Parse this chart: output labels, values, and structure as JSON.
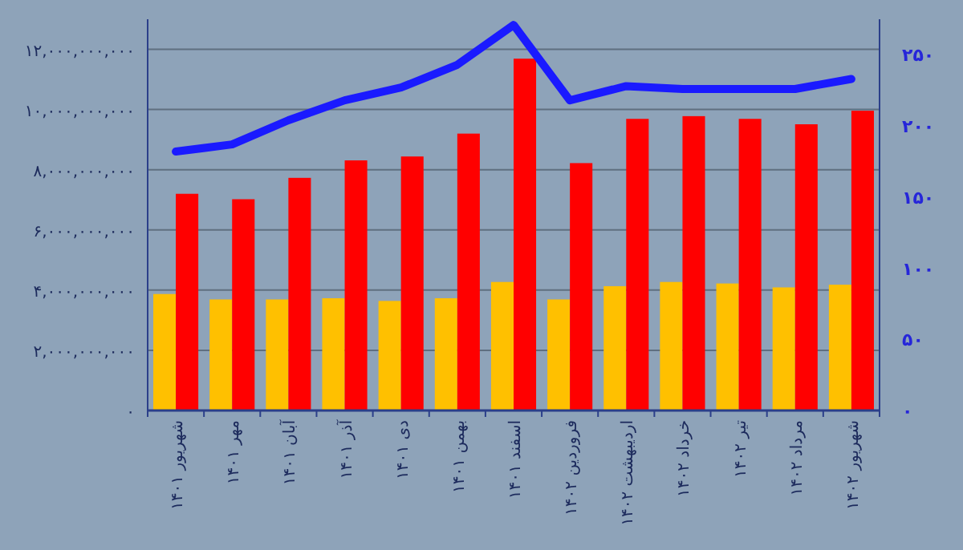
{
  "chart_data": {
    "type": "bar",
    "categories": [
      "شهریور ۱۴۰۱",
      "مهر ۱۴۰۱",
      "آبان ۱۴۰۱",
      "آذر ۱۴۰۱",
      "دی ۱۴۰۱",
      "بهمن ۱۴۰۱",
      "اسفند ۱۴۰۱",
      "فروردین ۱۴۰۲",
      "اردیبهشت ۱۴۰۲",
      "خرداد ۱۴۰۲",
      "تیر ۱۴۰۲",
      "مرداد ۱۴۰۲",
      "شهریور ۱۴۰۲"
    ],
    "series": [
      {
        "color": "#ffc000",
        "values": [
          3870000000,
          3690000000,
          3690000000,
          3730000000,
          3640000000,
          3730000000,
          4270000000,
          3690000000,
          4130000000,
          4270000000,
          4220000000,
          4090000000,
          4180000000
        ]
      },
      {
        "color": "#ff0000",
        "values": [
          7200000000,
          7020000000,
          7730000000,
          8310000000,
          8440000000,
          9200000000,
          11690000000,
          8220000000,
          9690000000,
          9780000000,
          9690000000,
          9510000000,
          9960000000
        ]
      },
      {
        "type": "line",
        "axis": "y2",
        "color": "#1a1aff",
        "values": [
          182,
          187,
          204,
          218,
          227,
          243,
          271,
          218,
          228,
          226,
          226,
          226,
          233
        ]
      }
    ],
    "ylim": [
      0,
      13000000000
    ],
    "yticks": [
      {
        "value": 0,
        "label": "۰"
      },
      {
        "value": 2000000000,
        "label": "۲,۰۰۰,۰۰۰,۰۰۰"
      },
      {
        "value": 4000000000,
        "label": "۴,۰۰۰,۰۰۰,۰۰۰"
      },
      {
        "value": 6000000000,
        "label": "۶,۰۰۰,۰۰۰,۰۰۰"
      },
      {
        "value": 8000000000,
        "label": "۸,۰۰۰,۰۰۰,۰۰۰"
      },
      {
        "value": 10000000000,
        "label": "۱۰,۰۰۰,۰۰۰,۰۰۰"
      },
      {
        "value": 12000000000,
        "label": "۱۲,۰۰۰,۰۰۰,۰۰۰"
      }
    ],
    "y2lim": [
      0,
      275
    ],
    "y2ticks": [
      {
        "value": 0,
        "label": "۰"
      },
      {
        "value": 50,
        "label": "۵۰"
      },
      {
        "value": 100,
        "label": "۱۰۰"
      },
      {
        "value": 150,
        "label": "۱۵۰"
      },
      {
        "value": 200,
        "label": "۲۰۰"
      },
      {
        "value": 250,
        "label": "۲۵۰"
      }
    ],
    "grid": "y"
  }
}
